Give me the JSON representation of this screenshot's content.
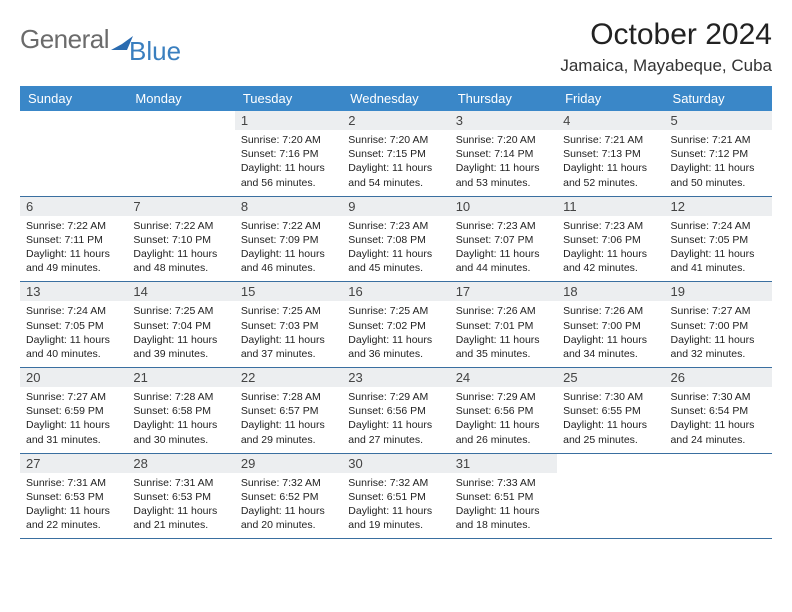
{
  "logo": {
    "general": "General",
    "blue": "Blue"
  },
  "title": "October 2024",
  "location": "Jamaica, Mayabeque, Cuba",
  "colors": {
    "header_bg": "#3a87c8",
    "header_text": "#ffffff",
    "datebar_bg": "#eceef0",
    "week_border": "#3a6fa0",
    "logo_gray": "#6b6b6b",
    "logo_blue": "#3a7fbf"
  },
  "daynames": [
    "Sunday",
    "Monday",
    "Tuesday",
    "Wednesday",
    "Thursday",
    "Friday",
    "Saturday"
  ],
  "weeks": [
    [
      {
        "empty": true
      },
      {
        "empty": true
      },
      {
        "date": "1",
        "sunrise": "Sunrise: 7:20 AM",
        "sunset": "Sunset: 7:16 PM",
        "daylight": "Daylight: 11 hours and 56 minutes."
      },
      {
        "date": "2",
        "sunrise": "Sunrise: 7:20 AM",
        "sunset": "Sunset: 7:15 PM",
        "daylight": "Daylight: 11 hours and 54 minutes."
      },
      {
        "date": "3",
        "sunrise": "Sunrise: 7:20 AM",
        "sunset": "Sunset: 7:14 PM",
        "daylight": "Daylight: 11 hours and 53 minutes."
      },
      {
        "date": "4",
        "sunrise": "Sunrise: 7:21 AM",
        "sunset": "Sunset: 7:13 PM",
        "daylight": "Daylight: 11 hours and 52 minutes."
      },
      {
        "date": "5",
        "sunrise": "Sunrise: 7:21 AM",
        "sunset": "Sunset: 7:12 PM",
        "daylight": "Daylight: 11 hours and 50 minutes."
      }
    ],
    [
      {
        "date": "6",
        "sunrise": "Sunrise: 7:22 AM",
        "sunset": "Sunset: 7:11 PM",
        "daylight": "Daylight: 11 hours and 49 minutes."
      },
      {
        "date": "7",
        "sunrise": "Sunrise: 7:22 AM",
        "sunset": "Sunset: 7:10 PM",
        "daylight": "Daylight: 11 hours and 48 minutes."
      },
      {
        "date": "8",
        "sunrise": "Sunrise: 7:22 AM",
        "sunset": "Sunset: 7:09 PM",
        "daylight": "Daylight: 11 hours and 46 minutes."
      },
      {
        "date": "9",
        "sunrise": "Sunrise: 7:23 AM",
        "sunset": "Sunset: 7:08 PM",
        "daylight": "Daylight: 11 hours and 45 minutes."
      },
      {
        "date": "10",
        "sunrise": "Sunrise: 7:23 AM",
        "sunset": "Sunset: 7:07 PM",
        "daylight": "Daylight: 11 hours and 44 minutes."
      },
      {
        "date": "11",
        "sunrise": "Sunrise: 7:23 AM",
        "sunset": "Sunset: 7:06 PM",
        "daylight": "Daylight: 11 hours and 42 minutes."
      },
      {
        "date": "12",
        "sunrise": "Sunrise: 7:24 AM",
        "sunset": "Sunset: 7:05 PM",
        "daylight": "Daylight: 11 hours and 41 minutes."
      }
    ],
    [
      {
        "date": "13",
        "sunrise": "Sunrise: 7:24 AM",
        "sunset": "Sunset: 7:05 PM",
        "daylight": "Daylight: 11 hours and 40 minutes."
      },
      {
        "date": "14",
        "sunrise": "Sunrise: 7:25 AM",
        "sunset": "Sunset: 7:04 PM",
        "daylight": "Daylight: 11 hours and 39 minutes."
      },
      {
        "date": "15",
        "sunrise": "Sunrise: 7:25 AM",
        "sunset": "Sunset: 7:03 PM",
        "daylight": "Daylight: 11 hours and 37 minutes."
      },
      {
        "date": "16",
        "sunrise": "Sunrise: 7:25 AM",
        "sunset": "Sunset: 7:02 PM",
        "daylight": "Daylight: 11 hours and 36 minutes."
      },
      {
        "date": "17",
        "sunrise": "Sunrise: 7:26 AM",
        "sunset": "Sunset: 7:01 PM",
        "daylight": "Daylight: 11 hours and 35 minutes."
      },
      {
        "date": "18",
        "sunrise": "Sunrise: 7:26 AM",
        "sunset": "Sunset: 7:00 PM",
        "daylight": "Daylight: 11 hours and 34 minutes."
      },
      {
        "date": "19",
        "sunrise": "Sunrise: 7:27 AM",
        "sunset": "Sunset: 7:00 PM",
        "daylight": "Daylight: 11 hours and 32 minutes."
      }
    ],
    [
      {
        "date": "20",
        "sunrise": "Sunrise: 7:27 AM",
        "sunset": "Sunset: 6:59 PM",
        "daylight": "Daylight: 11 hours and 31 minutes."
      },
      {
        "date": "21",
        "sunrise": "Sunrise: 7:28 AM",
        "sunset": "Sunset: 6:58 PM",
        "daylight": "Daylight: 11 hours and 30 minutes."
      },
      {
        "date": "22",
        "sunrise": "Sunrise: 7:28 AM",
        "sunset": "Sunset: 6:57 PM",
        "daylight": "Daylight: 11 hours and 29 minutes."
      },
      {
        "date": "23",
        "sunrise": "Sunrise: 7:29 AM",
        "sunset": "Sunset: 6:56 PM",
        "daylight": "Daylight: 11 hours and 27 minutes."
      },
      {
        "date": "24",
        "sunrise": "Sunrise: 7:29 AM",
        "sunset": "Sunset: 6:56 PM",
        "daylight": "Daylight: 11 hours and 26 minutes."
      },
      {
        "date": "25",
        "sunrise": "Sunrise: 7:30 AM",
        "sunset": "Sunset: 6:55 PM",
        "daylight": "Daylight: 11 hours and 25 minutes."
      },
      {
        "date": "26",
        "sunrise": "Sunrise: 7:30 AM",
        "sunset": "Sunset: 6:54 PM",
        "daylight": "Daylight: 11 hours and 24 minutes."
      }
    ],
    [
      {
        "date": "27",
        "sunrise": "Sunrise: 7:31 AM",
        "sunset": "Sunset: 6:53 PM",
        "daylight": "Daylight: 11 hours and 22 minutes."
      },
      {
        "date": "28",
        "sunrise": "Sunrise: 7:31 AM",
        "sunset": "Sunset: 6:53 PM",
        "daylight": "Daylight: 11 hours and 21 minutes."
      },
      {
        "date": "29",
        "sunrise": "Sunrise: 7:32 AM",
        "sunset": "Sunset: 6:52 PM",
        "daylight": "Daylight: 11 hours and 20 minutes."
      },
      {
        "date": "30",
        "sunrise": "Sunrise: 7:32 AM",
        "sunset": "Sunset: 6:51 PM",
        "daylight": "Daylight: 11 hours and 19 minutes."
      },
      {
        "date": "31",
        "sunrise": "Sunrise: 7:33 AM",
        "sunset": "Sunset: 6:51 PM",
        "daylight": "Daylight: 11 hours and 18 minutes."
      },
      {
        "empty": true
      },
      {
        "empty": true
      }
    ]
  ]
}
